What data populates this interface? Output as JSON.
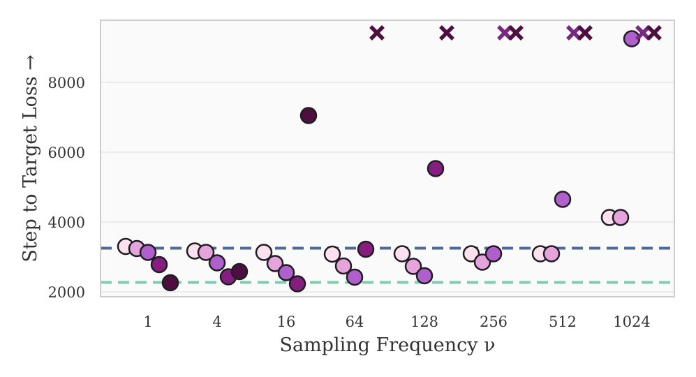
{
  "chart_data": {
    "type": "scatter",
    "title": "",
    "xlabel": "Sampling Frequency ν",
    "ylabel": "Step to Target Loss →",
    "ylim": [
      1800,
      9800
    ],
    "grid": "horizontal",
    "categories": [
      "1",
      "4",
      "16",
      "64",
      "128",
      "256",
      "512",
      "1024"
    ],
    "yticks": [
      2000,
      4000,
      6000,
      8000
    ],
    "colors": {
      "s1": "#ffe0ee",
      "s2": "#e6a4dc",
      "s3": "#b060cc",
      "s4": "#861e80",
      "s5": "#4e0f40",
      "cross_light": "#762a82",
      "cross_dark": "#4e0f40",
      "ref_blue": "#4c6a94",
      "ref_green": "#7fcdb1"
    },
    "reference_lines": [
      {
        "y": 3250,
        "color_key": "ref_blue"
      },
      {
        "y": 2270,
        "color_key": "ref_green"
      }
    ],
    "points": [
      {
        "group": "1",
        "offset": -0.32,
        "y": 3300,
        "shade": "s1",
        "marker": "circle"
      },
      {
        "group": "1",
        "offset": -0.16,
        "y": 3240,
        "shade": "s2",
        "marker": "circle"
      },
      {
        "group": "1",
        "offset": 0.0,
        "y": 3130,
        "shade": "s3",
        "marker": "circle"
      },
      {
        "group": "1",
        "offset": 0.16,
        "y": 2780,
        "shade": "s4",
        "marker": "circle"
      },
      {
        "group": "1",
        "offset": 0.32,
        "y": 2260,
        "shade": "s5",
        "marker": "circle"
      },
      {
        "group": "4",
        "offset": -0.32,
        "y": 3170,
        "shade": "s1",
        "marker": "circle"
      },
      {
        "group": "4",
        "offset": -0.16,
        "y": 3130,
        "shade": "s2",
        "marker": "circle"
      },
      {
        "group": "4",
        "offset": 0.0,
        "y": 2830,
        "shade": "s3",
        "marker": "circle"
      },
      {
        "group": "4",
        "offset": 0.16,
        "y": 2430,
        "shade": "s4",
        "marker": "circle"
      },
      {
        "group": "4",
        "offset": 0.32,
        "y": 2580,
        "shade": "s5",
        "marker": "circle"
      },
      {
        "group": "16",
        "offset": -0.32,
        "y": 3130,
        "shade": "s1",
        "marker": "circle"
      },
      {
        "group": "16",
        "offset": -0.16,
        "y": 2810,
        "shade": "s2",
        "marker": "circle"
      },
      {
        "group": "16",
        "offset": 0.0,
        "y": 2550,
        "shade": "s3",
        "marker": "circle"
      },
      {
        "group": "16",
        "offset": 0.16,
        "y": 2230,
        "shade": "s4",
        "marker": "circle"
      },
      {
        "group": "16",
        "offset": 0.32,
        "y": 7050,
        "shade": "s5",
        "marker": "circle"
      },
      {
        "group": "64",
        "offset": -0.32,
        "y": 3080,
        "shade": "s1",
        "marker": "circle"
      },
      {
        "group": "64",
        "offset": -0.16,
        "y": 2740,
        "shade": "s2",
        "marker": "circle"
      },
      {
        "group": "64",
        "offset": 0.0,
        "y": 2420,
        "shade": "s3",
        "marker": "circle"
      },
      {
        "group": "64",
        "offset": 0.16,
        "y": 3220,
        "shade": "s4",
        "marker": "circle"
      },
      {
        "group": "64",
        "offset": 0.32,
        "y": 9420,
        "shade": "cross_dark",
        "marker": "x"
      },
      {
        "group": "128",
        "offset": -0.32,
        "y": 3090,
        "shade": "s1",
        "marker": "circle"
      },
      {
        "group": "128",
        "offset": -0.16,
        "y": 2730,
        "shade": "s2",
        "marker": "circle"
      },
      {
        "group": "128",
        "offset": 0.0,
        "y": 2460,
        "shade": "s3",
        "marker": "circle"
      },
      {
        "group": "128",
        "offset": 0.16,
        "y": 5530,
        "shade": "s4",
        "marker": "circle"
      },
      {
        "group": "128",
        "offset": 0.32,
        "y": 9420,
        "shade": "cross_dark",
        "marker": "x"
      },
      {
        "group": "256",
        "offset": -0.32,
        "y": 3090,
        "shade": "s1",
        "marker": "circle"
      },
      {
        "group": "256",
        "offset": -0.16,
        "y": 2850,
        "shade": "s2",
        "marker": "circle"
      },
      {
        "group": "256",
        "offset": 0.0,
        "y": 3090,
        "shade": "s3",
        "marker": "circle"
      },
      {
        "group": "256",
        "offset": 0.16,
        "y": 9420,
        "shade": "cross_light",
        "marker": "x"
      },
      {
        "group": "256",
        "offset": 0.32,
        "y": 9420,
        "shade": "cross_dark",
        "marker": "x"
      },
      {
        "group": "512",
        "offset": -0.32,
        "y": 3090,
        "shade": "s1",
        "marker": "circle"
      },
      {
        "group": "512",
        "offset": -0.16,
        "y": 3090,
        "shade": "s2",
        "marker": "circle"
      },
      {
        "group": "512",
        "offset": 0.0,
        "y": 4650,
        "shade": "s3",
        "marker": "circle"
      },
      {
        "group": "512",
        "offset": 0.16,
        "y": 9420,
        "shade": "cross_light",
        "marker": "x"
      },
      {
        "group": "512",
        "offset": 0.32,
        "y": 9420,
        "shade": "cross_dark",
        "marker": "x"
      },
      {
        "group": "1024",
        "offset": -0.32,
        "y": 4130,
        "shade": "s1",
        "marker": "circle"
      },
      {
        "group": "1024",
        "offset": -0.16,
        "y": 4130,
        "shade": "s2",
        "marker": "circle"
      },
      {
        "group": "1024",
        "offset": 0.0,
        "y": 9250,
        "shade": "s3",
        "marker": "circle"
      },
      {
        "group": "1024",
        "offset": 0.16,
        "y": 9420,
        "shade": "cross_light",
        "marker": "x"
      },
      {
        "group": "1024",
        "offset": 0.32,
        "y": 9420,
        "shade": "cross_dark",
        "marker": "x"
      }
    ]
  }
}
